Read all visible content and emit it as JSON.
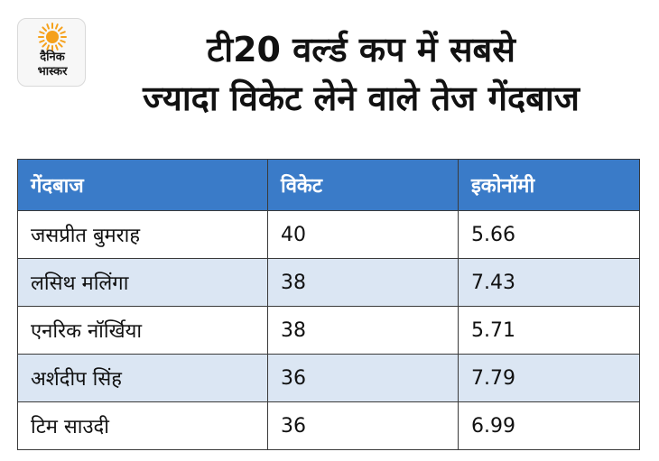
{
  "logo": {
    "line1": "दैनिक",
    "line2": "भास्कर"
  },
  "title": {
    "line1": "टी20 वर्ल्ड कप में सबसे",
    "line2": "ज्यादा विकेट लेने वाले तेज गेंदबाज"
  },
  "colors": {
    "header": "#3a7bc8",
    "alt_row": "#dbe6f3",
    "sun": "#f5a11c"
  },
  "table": {
    "headers": [
      "गेंदबाज",
      "विकेट",
      "इकोनॉमी"
    ],
    "rows": [
      [
        "जसप्रीत बुमराह",
        "40",
        "5.66"
      ],
      [
        "लसिथ मलिंगा",
        "38",
        "7.43"
      ],
      [
        "एनरिक नॉर्खिया",
        "38",
        "5.71"
      ],
      [
        "अर्शदीप सिंह",
        "36",
        "7.79"
      ],
      [
        "टिम साउदी",
        "36",
        "6.99"
      ]
    ]
  }
}
